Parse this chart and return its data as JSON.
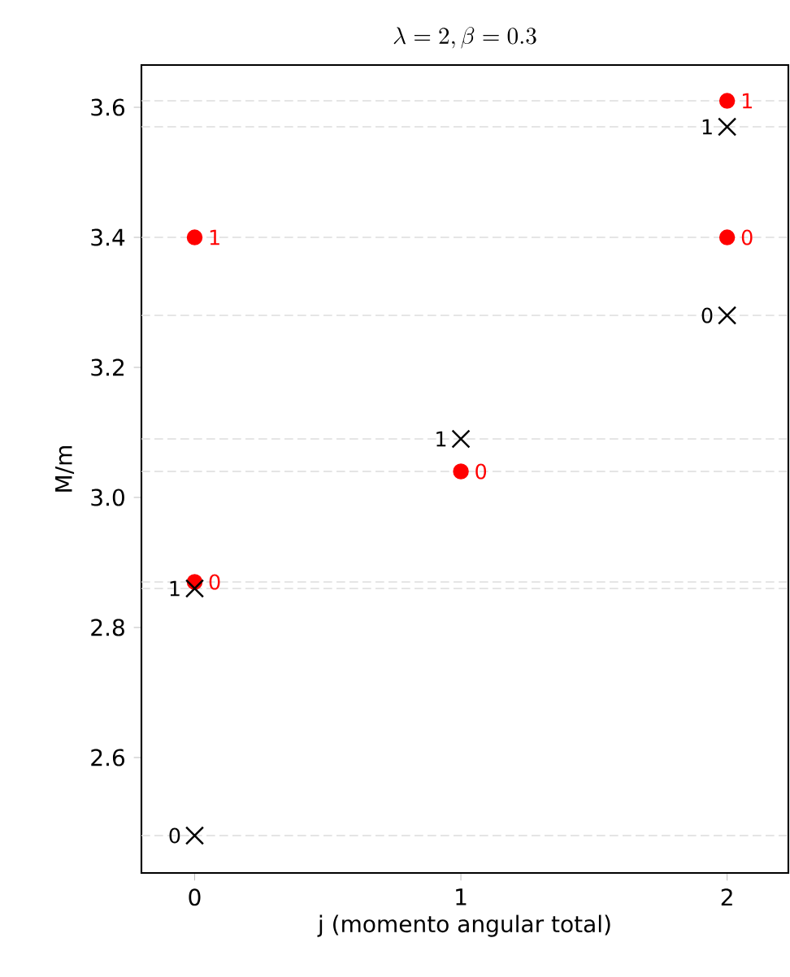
{
  "chart_data": {
    "type": "scatter",
    "title": "\\lambda = 2, \\beta = 0.3",
    "xlabel": "j (momento angular total)",
    "ylabel": "M/m",
    "xlim": [
      -0.2,
      2.23
    ],
    "ylim": [
      2.4225,
      3.665
    ],
    "xticks": [
      0,
      1,
      2
    ],
    "yticks": [
      2.6,
      2.8,
      {
        "value": 3.0,
        "label": "3.0"
      },
      3.2,
      3.4,
      3.6
    ],
    "series": [
      {
        "color": "#ff0000",
        "marker": "circle",
        "x": [
          0,
          2,
          2,
          1,
          0
        ],
        "values": [
          3.4,
          3.61,
          3.4,
          3.04,
          2.87
        ]
      },
      {
        "color": "#000000",
        "marker": "cross",
        "x": [
          2,
          2,
          1,
          0,
          0
        ],
        "values": [
          3.57,
          3.28,
          3.09,
          2.86,
          2.48
        ]
      }
    ],
    "annotations": [
      {
        "text": "1",
        "x": 0,
        "y": 3.4
      },
      {
        "text": "1",
        "x": 2,
        "y": 3.61
      },
      {
        "text": "0",
        "x": 2,
        "y": 3.4
      },
      {
        "text": "0",
        "x": 1,
        "y": 3.04
      },
      {
        "text": "0",
        "x": 0,
        "y": 2.87
      },
      {
        "text": "1",
        "x": 2,
        "y": 3.57
      },
      {
        "text": "0",
        "x": 2,
        "y": 3.28
      },
      {
        "text": "1",
        "x": 1,
        "y": 3.09
      },
      {
        "text": "1",
        "x": 0,
        "y": 2.86
      },
      {
        "text": "0",
        "x": 0,
        "y": 2.48
      }
    ],
    "ref_lines": [
      {
        "axis": "y",
        "value": 3.61,
        "color": "#dddddd",
        "line_style": "dashed"
      },
      {
        "axis": "y",
        "value": 3.57,
        "color": "#dddddd",
        "line_style": "dashed"
      },
      {
        "axis": "y",
        "value": 3.4,
        "color": "#dddddd",
        "line_style": "dashed"
      },
      {
        "axis": "y",
        "value": 3.28,
        "color": "#dddddd",
        "line_style": "dashed"
      },
      {
        "axis": "y",
        "value": 3.09,
        "color": "#dddddd",
        "line_style": "dashed"
      },
      {
        "axis": "y",
        "value": 3.04,
        "color": "#dddddd",
        "line_style": "dashed"
      },
      {
        "axis": "y",
        "value": 2.87,
        "color": "#dddddd",
        "line_style": "dashed"
      },
      {
        "axis": "y",
        "value": 2.86,
        "color": "#dddddd",
        "line_style": "dashed"
      },
      {
        "axis": "y",
        "value": 2.48,
        "color": "#dddddd",
        "line_style": "dashed"
      }
    ]
  }
}
